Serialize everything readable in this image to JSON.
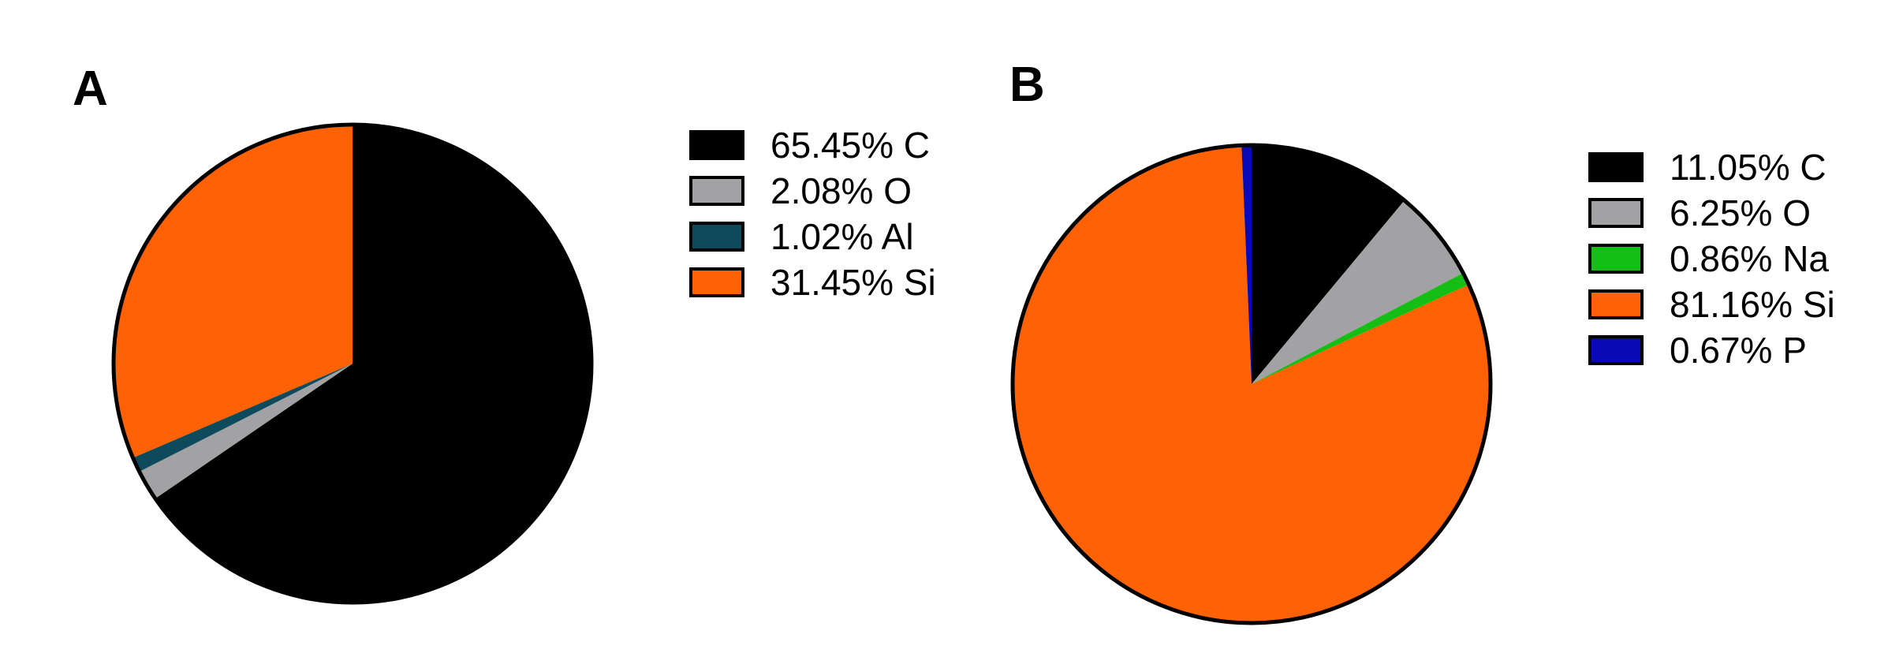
{
  "chart_data": [
    {
      "type": "pie",
      "panel_label": "A",
      "legend_position": "right",
      "slices": [
        {
          "element": "C",
          "percent": 65.45,
          "label": "65.45%",
          "color": "#000000"
        },
        {
          "element": "O",
          "percent": 2.08,
          "label": "2.08%",
          "color": "#a2a2a4"
        },
        {
          "element": "Al",
          "percent": 1.02,
          "label": "1.02%",
          "color": "#0c4a5c"
        },
        {
          "element": "Si",
          "percent": 31.45,
          "label": "31.45%",
          "color": "#ff6103"
        }
      ]
    },
    {
      "type": "pie",
      "panel_label": "B",
      "legend_position": "right",
      "slices": [
        {
          "element": "C",
          "percent": 11.05,
          "label": "11.05%",
          "color": "#000000"
        },
        {
          "element": "O",
          "percent": 6.25,
          "label": "6.25%",
          "color": "#a2a2a4"
        },
        {
          "element": "Na",
          "percent": 0.86,
          "label": "0.86%",
          "color": "#14be14"
        },
        {
          "element": "Si",
          "percent": 81.16,
          "label": "81.16%",
          "color": "#ff6103"
        },
        {
          "element": "P",
          "percent": 0.67,
          "label": "0.67%",
          "color": "#0a0ab4"
        }
      ]
    }
  ]
}
